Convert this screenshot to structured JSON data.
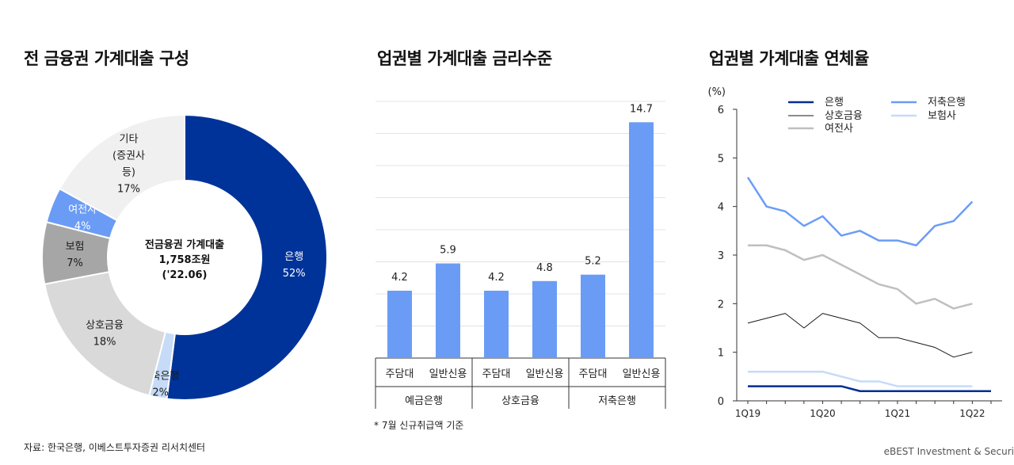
{
  "titles": {
    "left": "전 금융권 가계대출 구성",
    "middle": "업권별 가계대출 금리수준",
    "right": "업권별 가계대출 연체율"
  },
  "footer": {
    "source": "자료: 한국은행, 이베스트투자증권 리서치센터",
    "brand": "eBEST Investment & Securi"
  },
  "chart_data": [
    {
      "type": "pie",
      "title": "전 금융권 가계대출 구성",
      "center_label": [
        "전금융권 가계대출",
        "1,758조원",
        "('22.06)"
      ],
      "slices": [
        {
          "label": "은행",
          "value": 52,
          "pct_label": "52%",
          "color": "#003399"
        },
        {
          "label": "저축은행",
          "value": 2,
          "pct_label": "2%",
          "color": "#c6dbf7"
        },
        {
          "label": "상호금융",
          "value": 18,
          "pct_label": "18%",
          "color": "#d9d9d9"
        },
        {
          "label": "보험",
          "value": 7,
          "pct_label": "7%",
          "color": "#a6a6a6"
        },
        {
          "label": "여전사",
          "value": 4,
          "pct_label": "4%",
          "color": "#6b9cf5"
        },
        {
          "label": "기타\n(증권사\n등)",
          "value": 17,
          "pct_label": "17%",
          "color": "#f0f0f0"
        }
      ]
    },
    {
      "type": "bar",
      "title": "업권별 가계대출 금리수준",
      "categories": [
        "주담대",
        "일반신용",
        "주담대",
        "일반신용",
        "주담대",
        "일반신용"
      ],
      "groups": [
        "예금은행",
        "상호금융",
        "저축은행"
      ],
      "values": [
        4.2,
        5.9,
        4.2,
        4.8,
        5.2,
        14.7
      ],
      "value_labels": [
        "4.2",
        "5.9",
        "4.2",
        "4.8",
        "5.2",
        "14.7"
      ],
      "ylim": [
        0,
        16
      ],
      "grid": true,
      "color": "#6b9cf5",
      "note": "* 7월 신규취급액 기준"
    },
    {
      "type": "line",
      "title": "업권별 가계대출 연체율",
      "ylabel": "(%)",
      "ylim": [
        0,
        6
      ],
      "yticks": [
        "0",
        "1",
        "2",
        "3",
        "4",
        "5",
        "6"
      ],
      "x": [
        "1Q19",
        "2Q19",
        "3Q19",
        "4Q19",
        "1Q20",
        "2Q20",
        "3Q20",
        "4Q20",
        "1Q21",
        "2Q21",
        "3Q21",
        "4Q21",
        "1Q22",
        "2Q22"
      ],
      "xtick_labels": [
        "1Q19",
        "1Q20",
        "1Q21",
        "1Q22"
      ],
      "legend": "top",
      "series": [
        {
          "name": "은행",
          "color": "#002d8f",
          "values": [
            0.3,
            0.3,
            0.3,
            0.3,
            0.3,
            0.3,
            0.2,
            0.2,
            0.2,
            0.2,
            0.2,
            0.2,
            0.2,
            0.2
          ]
        },
        {
          "name": "저축은행",
          "color": "#6b9cf5",
          "values": [
            4.6,
            4.0,
            3.9,
            3.6,
            3.8,
            3.4,
            3.5,
            3.3,
            3.3,
            3.2,
            3.6,
            3.7,
            4.1,
            null
          ]
        },
        {
          "name": "상호금융",
          "color": "#1a1a1a",
          "values": [
            1.6,
            1.7,
            1.8,
            1.5,
            1.8,
            1.7,
            1.6,
            1.3,
            1.3,
            1.2,
            1.1,
            0.9,
            1.0,
            null
          ]
        },
        {
          "name": "보험사",
          "color": "#c6dbf7",
          "values": [
            0.6,
            0.6,
            0.6,
            0.6,
            0.6,
            0.5,
            0.4,
            0.4,
            0.3,
            0.3,
            0.3,
            0.3,
            0.3,
            null
          ]
        },
        {
          "name": "여전사",
          "color": "#bfbfbf",
          "values": [
            3.2,
            3.2,
            3.1,
            2.9,
            3.0,
            2.8,
            2.6,
            2.4,
            2.3,
            2.0,
            2.1,
            1.9,
            2.0,
            null
          ]
        }
      ]
    }
  ]
}
